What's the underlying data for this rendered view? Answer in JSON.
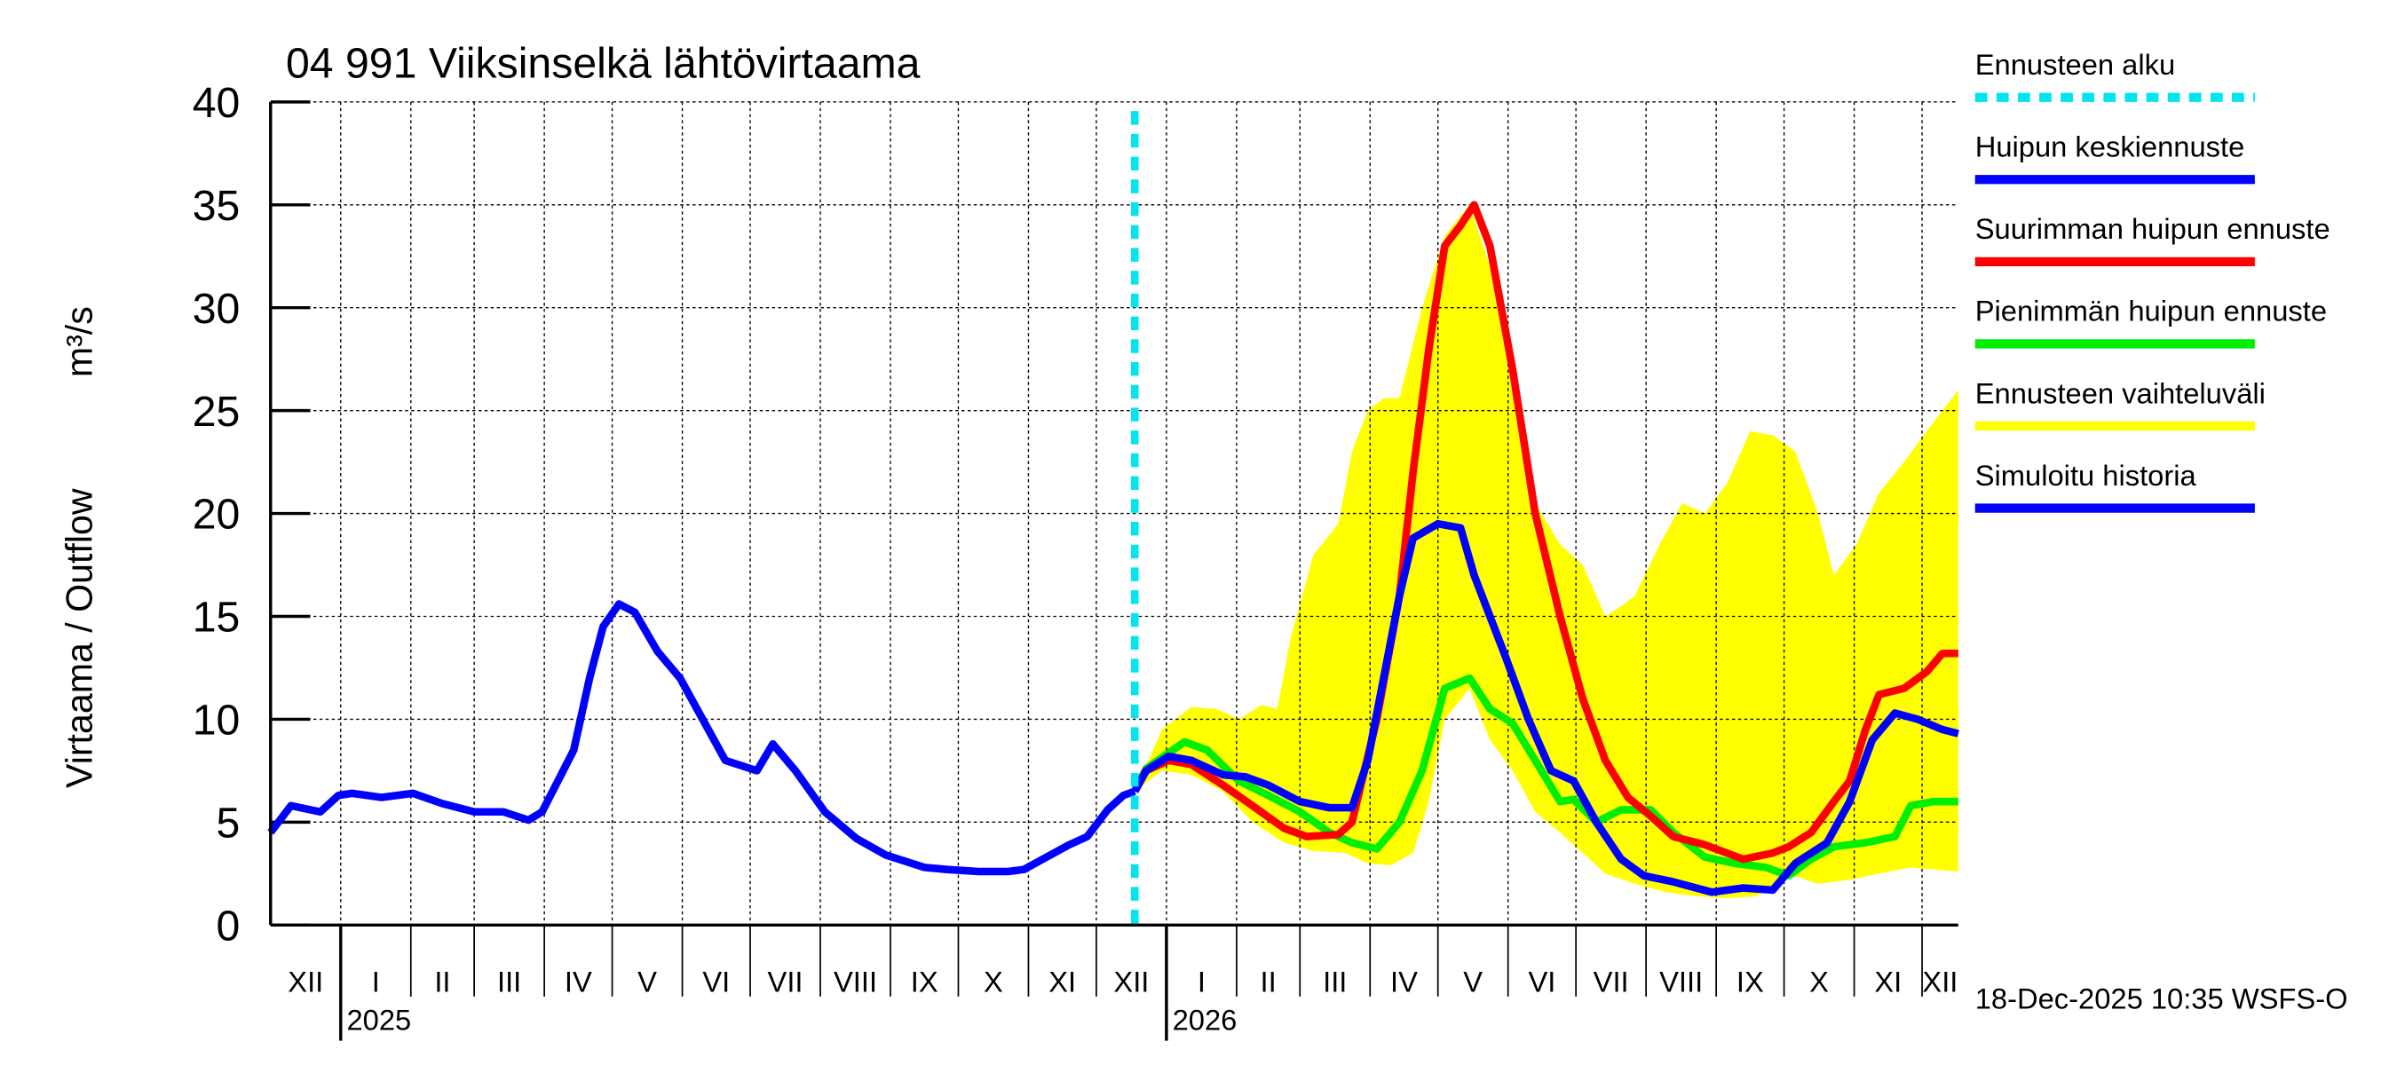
{
  "chart_data": {
    "type": "line",
    "title": "04 991 Viiksinselkä lähtövirtaama",
    "ylabel": "Virtaama / Outflow",
    "yunit": "m³/s",
    "ylim": [
      0,
      40
    ],
    "yticks": [
      0,
      5,
      10,
      15,
      20,
      25,
      30,
      35,
      40
    ],
    "x_unit": "days since 2024-12-01",
    "xlim": [
      0,
      746
    ],
    "grid": true,
    "month_labels": [
      "XII",
      "I",
      "II",
      "III",
      "IV",
      "V",
      "VI",
      "VII",
      "VIII",
      "IX",
      "X",
      "XI",
      "XII",
      "I",
      "II",
      "III",
      "IV",
      "V",
      "VI",
      "VII",
      "VIII",
      "IX",
      "X",
      "XI",
      "XII"
    ],
    "year_labels": [
      "2025",
      "2026"
    ],
    "forecast_start_day": 382,
    "timestamp": "18-Dec-2025 10:35 WSFS-O",
    "legend": [
      {
        "label": "Ennusteen alku",
        "color": "#00e5ee",
        "style": "dashed"
      },
      {
        "label": "Huipun keskiennuste",
        "color": "#0000ff"
      },
      {
        "label": "Suurimman huipun ennuste",
        "color": "#ff0000"
      },
      {
        "label": "Pienimmän huipun ennuste",
        "color": "#00ee00"
      },
      {
        "label": "Ennusteen vaihteluväli",
        "color": "#ffff00"
      },
      {
        "label": "Simuloitu historia",
        "color": "#0000ff"
      }
    ],
    "band": {
      "name": "Ennusteen vaihteluväli",
      "upper": [
        [
          382,
          6.5
        ],
        [
          394,
          9.5
        ],
        [
          407,
          10.6
        ],
        [
          418,
          10.5
        ],
        [
          428,
          10
        ],
        [
          438,
          10.7
        ],
        [
          445,
          10.5
        ],
        [
          451,
          14
        ],
        [
          461,
          18
        ],
        [
          472,
          19.5
        ],
        [
          478,
          23
        ],
        [
          485,
          25
        ],
        [
          492,
          25.6
        ],
        [
          499,
          25.6
        ],
        [
          509,
          30
        ],
        [
          519,
          33.5
        ],
        [
          530,
          35
        ],
        [
          539,
          32
        ],
        [
          549,
          26
        ],
        [
          559,
          20.5
        ],
        [
          570,
          18.5
        ],
        [
          580,
          17.5
        ],
        [
          590,
          15
        ],
        [
          597,
          15.5
        ],
        [
          603,
          16
        ],
        [
          614,
          18.5
        ],
        [
          624,
          20.5
        ],
        [
          634,
          20
        ],
        [
          644,
          21.5
        ],
        [
          654,
          24
        ],
        [
          664,
          23.8
        ],
        [
          674,
          23
        ],
        [
          684,
          20
        ],
        [
          691,
          17
        ],
        [
          701,
          18.5
        ],
        [
          711,
          21
        ],
        [
          722,
          22.5
        ],
        [
          732,
          24
        ],
        [
          746,
          26
        ]
      ],
      "lower": [
        [
          382,
          6.5
        ],
        [
          394,
          7.5
        ],
        [
          407,
          7.3
        ],
        [
          421,
          6.5
        ],
        [
          434,
          5
        ],
        [
          448,
          4
        ],
        [
          461,
          3.6
        ],
        [
          475,
          3.5
        ],
        [
          485,
          3
        ],
        [
          495,
          2.9
        ],
        [
          505,
          3.5
        ],
        [
          512,
          6
        ],
        [
          519,
          10
        ],
        [
          530,
          11.5
        ],
        [
          539,
          9
        ],
        [
          549,
          7.5
        ],
        [
          559,
          5.5
        ],
        [
          570,
          4.5
        ],
        [
          580,
          3.5
        ],
        [
          590,
          2.5
        ],
        [
          603,
          2
        ],
        [
          617,
          1.6
        ],
        [
          630,
          1.4
        ],
        [
          644,
          1.3
        ],
        [
          657,
          1.4
        ],
        [
          671,
          2.5
        ],
        [
          684,
          2
        ],
        [
          698,
          2.2
        ],
        [
          711,
          2.5
        ],
        [
          725,
          2.8
        ],
        [
          746,
          2.6
        ]
      ]
    },
    "series": [
      {
        "name": "Simuloitu historia",
        "color": "#0000ff",
        "points": [
          [
            0,
            4.5
          ],
          [
            9,
            5.8
          ],
          [
            22,
            5.5
          ],
          [
            30,
            6.3
          ],
          [
            36,
            6.4
          ],
          [
            49,
            6.2
          ],
          [
            63,
            6.4
          ],
          [
            76,
            5.9
          ],
          [
            90,
            5.5
          ],
          [
            103,
            5.5
          ],
          [
            114,
            5.1
          ],
          [
            120,
            5.5
          ],
          [
            134,
            8.5
          ],
          [
            141,
            12
          ],
          [
            147,
            14.5
          ],
          [
            154,
            15.6
          ],
          [
            161,
            15.2
          ],
          [
            171,
            13.3
          ],
          [
            181,
            12
          ],
          [
            191,
            10
          ],
          [
            201,
            8
          ],
          [
            215,
            7.5
          ],
          [
            222,
            8.8
          ],
          [
            232,
            7.5
          ],
          [
            245,
            5.5
          ],
          [
            259,
            4.2
          ],
          [
            272,
            3.4
          ],
          [
            289,
            2.8
          ],
          [
            299,
            2.7
          ],
          [
            313,
            2.6
          ],
          [
            326,
            2.6
          ],
          [
            333,
            2.7
          ],
          [
            343,
            3.3
          ],
          [
            353,
            3.9
          ],
          [
            361,
            4.3
          ],
          [
            370,
            5.6
          ],
          [
            377,
            6.3
          ],
          [
            382,
            6.5
          ]
        ]
      },
      {
        "name": "Pienimmän huipun ennuste",
        "color": "#00ee00",
        "points": [
          [
            382,
            6.5
          ],
          [
            387,
            7.6
          ],
          [
            404,
            8.9
          ],
          [
            414,
            8.5
          ],
          [
            428,
            7
          ],
          [
            441,
            6.3
          ],
          [
            455,
            5.5
          ],
          [
            468,
            4.5
          ],
          [
            478,
            4
          ],
          [
            489,
            3.7
          ],
          [
            499,
            5
          ],
          [
            509,
            7.5
          ],
          [
            519,
            11.5
          ],
          [
            530,
            12
          ],
          [
            539,
            10.5
          ],
          [
            549,
            9.8
          ],
          [
            559,
            8
          ],
          [
            570,
            6
          ],
          [
            576,
            6.1
          ],
          [
            586,
            5
          ],
          [
            597,
            5.6
          ],
          [
            610,
            5.6
          ],
          [
            620,
            4.5
          ],
          [
            634,
            3.3
          ],
          [
            647,
            3
          ],
          [
            661,
            2.8
          ],
          [
            671,
            2.4
          ],
          [
            681,
            3.2
          ],
          [
            691,
            3.8
          ],
          [
            705,
            4
          ],
          [
            718,
            4.3
          ],
          [
            725,
            5.8
          ],
          [
            735,
            6
          ],
          [
            746,
            6
          ]
        ]
      },
      {
        "name": "Suurimman huipun ennuste",
        "color": "#ff0000",
        "points": [
          [
            382,
            6.5
          ],
          [
            387,
            7.5
          ],
          [
            397,
            8
          ],
          [
            407,
            7.8
          ],
          [
            421,
            6.8
          ],
          [
            434,
            5.8
          ],
          [
            448,
            4.7
          ],
          [
            458,
            4.3
          ],
          [
            472,
            4.4
          ],
          [
            478,
            5
          ],
          [
            489,
            10
          ],
          [
            499,
            16
          ],
          [
            505,
            22
          ],
          [
            512,
            28
          ],
          [
            519,
            33
          ],
          [
            526,
            34
          ],
          [
            532,
            35
          ],
          [
            539,
            33
          ],
          [
            549,
            27
          ],
          [
            559,
            20
          ],
          [
            570,
            15
          ],
          [
            580,
            11
          ],
          [
            590,
            8
          ],
          [
            600,
            6.2
          ],
          [
            610,
            5.3
          ],
          [
            620,
            4.3
          ],
          [
            634,
            3.9
          ],
          [
            651,
            3.2
          ],
          [
            664,
            3.5
          ],
          [
            671,
            3.8
          ],
          [
            681,
            4.5
          ],
          [
            691,
            6
          ],
          [
            698,
            7
          ],
          [
            705,
            9.5
          ],
          [
            711,
            11.2
          ],
          [
            722,
            11.5
          ],
          [
            732,
            12.3
          ],
          [
            739,
            13.2
          ],
          [
            746,
            13.2
          ]
        ]
      },
      {
        "name": "Huipun keskiennuste",
        "color": "#0000ff",
        "points": [
          [
            382,
            6.5
          ],
          [
            387,
            7.5
          ],
          [
            397,
            8.2
          ],
          [
            407,
            8.0
          ],
          [
            421,
            7.3
          ],
          [
            431,
            7.2
          ],
          [
            441,
            6.8
          ],
          [
            455,
            6.0
          ],
          [
            468,
            5.7
          ],
          [
            478,
            5.7
          ],
          [
            485,
            8
          ],
          [
            492,
            12
          ],
          [
            499,
            16
          ],
          [
            505,
            18.8
          ],
          [
            516,
            19.5
          ],
          [
            526,
            19.3
          ],
          [
            532,
            17
          ],
          [
            546,
            13
          ],
          [
            556,
            10
          ],
          [
            566,
            7.5
          ],
          [
            576,
            7
          ],
          [
            586,
            5
          ],
          [
            597,
            3.2
          ],
          [
            607,
            2.4
          ],
          [
            620,
            2.1
          ],
          [
            637,
            1.6
          ],
          [
            651,
            1.8
          ],
          [
            664,
            1.7
          ],
          [
            674,
            3
          ],
          [
            688,
            4
          ],
          [
            698,
            6
          ],
          [
            708,
            9
          ],
          [
            718,
            10.3
          ],
          [
            728,
            10
          ],
          [
            739,
            9.5
          ],
          [
            746,
            9.3
          ]
        ]
      }
    ]
  }
}
